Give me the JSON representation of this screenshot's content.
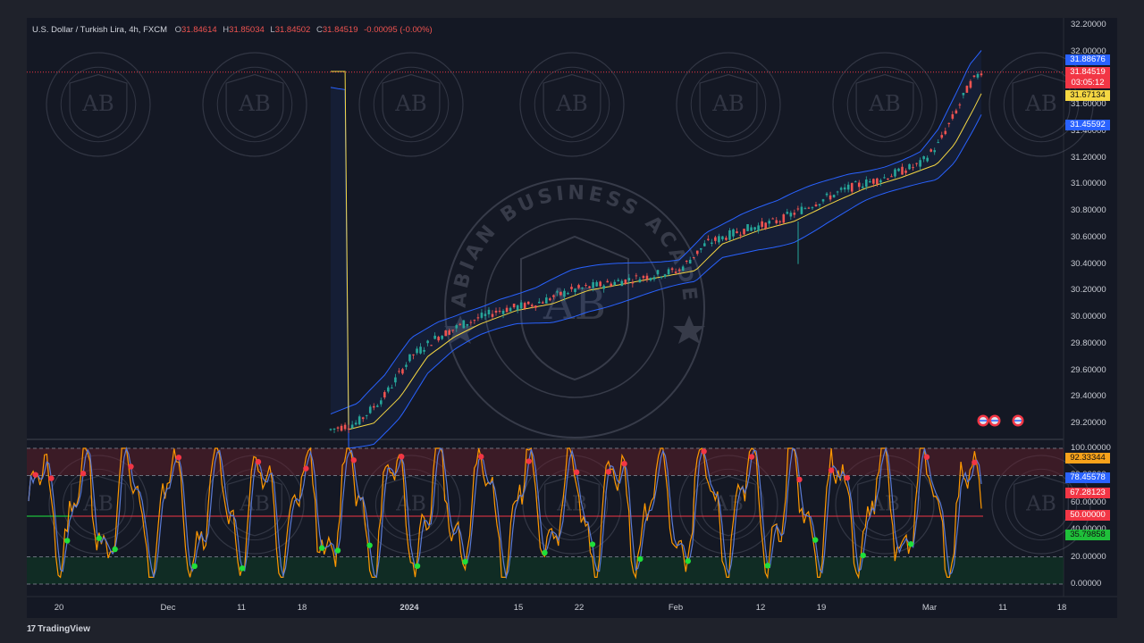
{
  "header": {
    "symbol": "U.S. Dollar / Turkish Lira, 4h, FXCM",
    "open_label": "O",
    "open": "31.84614",
    "high_label": "H",
    "high": "31.85034",
    "low_label": "L",
    "low": "31.84502",
    "close_label": "C",
    "close": "31.84519",
    "change": "-0.00095 (-0.00%)"
  },
  "price_axis": {
    "ticks": [
      "32.20000",
      "32.00000",
      "31.80000",
      "31.60000",
      "31.40000",
      "31.20000",
      "31.00000",
      "30.80000",
      "30.60000",
      "30.40000",
      "30.20000",
      "30.00000",
      "29.80000",
      "29.60000",
      "29.40000",
      "29.20000"
    ],
    "tags": {
      "upper_band": "31.88676",
      "last_price": "31.84519",
      "countdown": "03:05:12",
      "ma": "31.67134",
      "lower_band": "31.45592"
    }
  },
  "osc_axis": {
    "ticks": [
      "100.00000",
      "80.00000",
      "60.00000",
      "40.00000",
      "20.00000",
      "0.00000"
    ],
    "tags": {
      "k": "92.33344",
      "d": "78.45578",
      "level_a": "67.28123",
      "mid": "50.00000",
      "level_b": "35.79858"
    }
  },
  "time_axis": [
    "20",
    "Dec",
    "11",
    "18",
    "2024",
    "15",
    "22",
    "Feb",
    "12",
    "19",
    "Mar",
    "11",
    "18"
  ],
  "watermark": {
    "letters": "AB",
    "ring_text": "ARABIAN BUSINESS ACADEMY"
  },
  "footer": {
    "brand": "TradingView",
    "logo": "17"
  },
  "colors": {
    "up": "#26a69a",
    "down": "#ef5350",
    "band": "#2962ff",
    "ma": "#f5d742",
    "k_line": "#ff9800",
    "d_line": "#5b7bd5",
    "tag_blue": "#2962ff",
    "tag_red": "#f23645",
    "tag_yellow": "#f5d742",
    "tag_orange": "#f7a21b",
    "tag_green": "#1fbf3a"
  },
  "chart_data": {
    "type": "line",
    "title": "",
    "price_range": [
      29.1,
      32.25
    ],
    "osc_range": [
      0,
      100
    ],
    "x_labels": [
      "20",
      "Dec",
      "11",
      "18",
      "2024",
      "15",
      "22",
      "Feb",
      "12",
      "19",
      "Mar",
      "11",
      "18"
    ],
    "price_series": [
      {
        "name": "",
        "x": [
          "20",
          "Dec",
          "11",
          "18",
          "2024",
          "15",
          "22",
          "Feb",
          "12",
          "19",
          "Mar"
        ],
        "values": [
          29.15,
          29.35,
          29.75,
          29.95,
          30.05,
          30.2,
          30.3,
          30.4,
          30.7,
          30.85,
          31.2
        ]
      },
      {
        "name": "",
        "x": [
          "Mar"
        ],
        "values": [
          31.85
        ]
      }
    ],
    "osc_levels": [
      100,
      80,
      50,
      20,
      0
    ]
  }
}
